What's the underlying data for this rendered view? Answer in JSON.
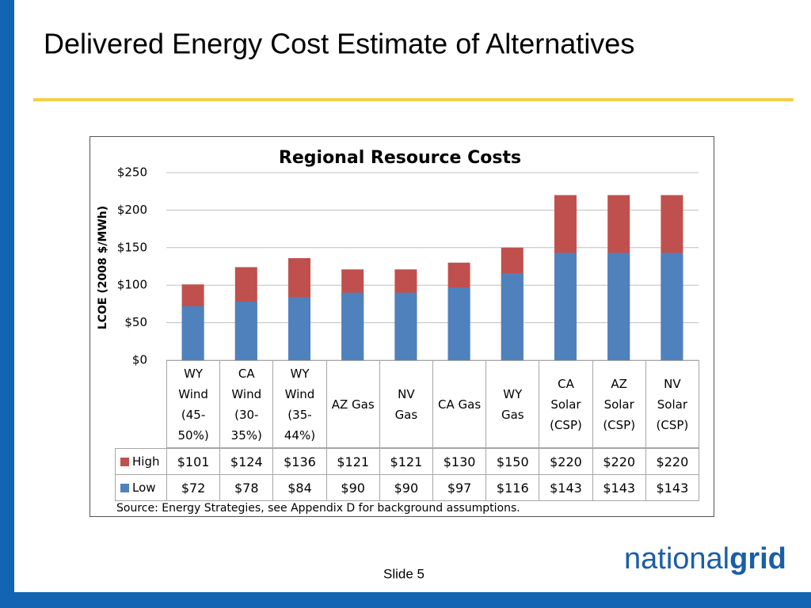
{
  "slide": {
    "title": "Delivered Energy Cost Estimate of Alternatives",
    "footer": "Slide 5",
    "logo": [
      "national",
      "grid"
    ]
  },
  "chart_data": {
    "type": "bar",
    "title": "Regional Resource Costs",
    "y_label": "LCOE (2008 $/MWh)",
    "categories": [
      "WY Wind (45-50%)",
      "CA Wind (30-35%)",
      "WY Wind (35-44%)",
      "AZ Gas",
      "NV Gas",
      "CA Gas",
      "WY Gas",
      "CA Solar (CSP)",
      "AZ Solar (CSP)",
      "NV Solar (CSP)"
    ],
    "series": [
      {
        "name": "High",
        "color": "#c0504d",
        "values": [
          101,
          124,
          136,
          121,
          121,
          130,
          150,
          220,
          220,
          220
        ],
        "value_labels": [
          "$101",
          "$124",
          "$136",
          "$121",
          "$121",
          "$130",
          "$150",
          "$220",
          "$220",
          "$220"
        ]
      },
      {
        "name": "Low",
        "color": "#4f81bd",
        "values": [
          72,
          78,
          84,
          90,
          90,
          97,
          116,
          143,
          143,
          143
        ],
        "value_labels": [
          "$72",
          "$78",
          "$84",
          "$90",
          "$90",
          "$97",
          "$116",
          "$143",
          "$143",
          "$143"
        ]
      }
    ],
    "ylim": [
      0,
      250
    ],
    "yticks": [
      {
        "value": 0,
        "label": "$0"
      },
      {
        "value": 50,
        "label": "$50"
      },
      {
        "value": 100,
        "label": "$100"
      },
      {
        "value": 150,
        "label": "$150"
      },
      {
        "value": 200,
        "label": "$200"
      },
      {
        "value": 250,
        "label": "$250"
      }
    ],
    "grid": true,
    "source": "Source: Energy Strategies, see Appendix D for background assumptions."
  }
}
